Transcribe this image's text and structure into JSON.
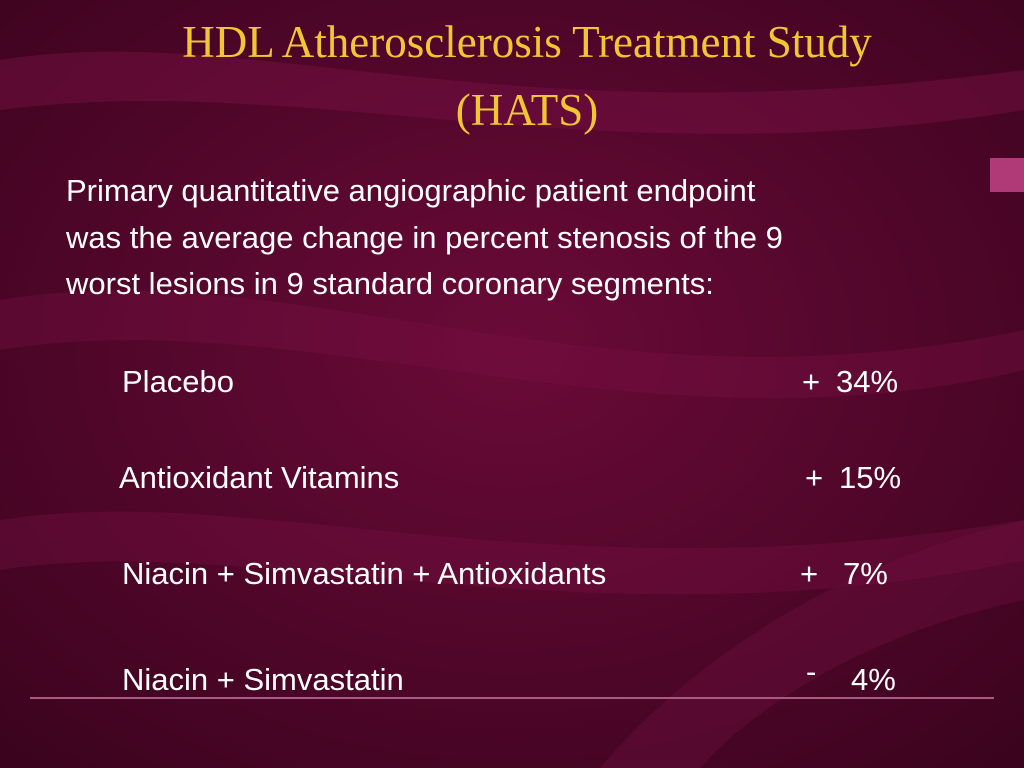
{
  "header": {
    "title": [
      "HDL Atherosclerosis Treatment Study",
      "(HATS)"
    ]
  },
  "intro": [
    "Primary quantitative angiographic patient endpoint",
    "was the average change in percent stenosis of the 9",
    "worst lesions in 9 standard coronary segments:"
  ],
  "rows": [
    {
      "label": "Placebo",
      "sign": "+",
      "value": "34%"
    },
    {
      "label": "Antioxidant Vitamins",
      "sign": "+",
      "value": "15%"
    },
    {
      "label": "Niacin + Simvastatin + Antioxidants",
      "sign": "+",
      "value": "7%"
    },
    {
      "label": "Niacin + Simvastatin",
      "sign": "-",
      "value": "4%"
    }
  ]
}
